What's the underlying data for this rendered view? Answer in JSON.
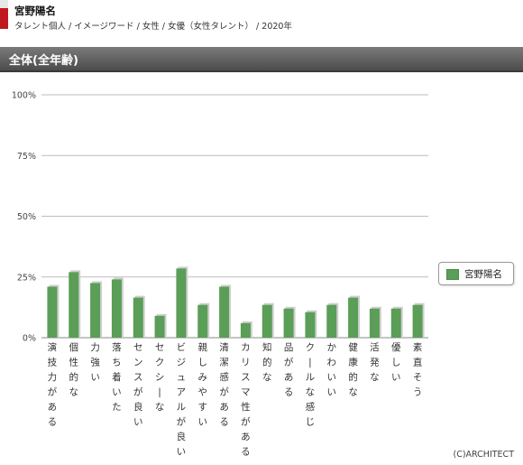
{
  "header": {
    "title": "宮野陽名",
    "subtitle": "タレント個人 / イメージワード / 女性 / 女優（女性タレント） / 2020年"
  },
  "section": {
    "title": "全体(全年齢)"
  },
  "copyright": "(C)ARCHITECT",
  "colors": {
    "bar": "#5a9e57",
    "bar_shadow": "#cfcfcf",
    "grid": "#bdbdbd",
    "section_bar": "#5e5e5e",
    "header_mark": "#c0181f"
  },
  "chart_data": {
    "type": "bar",
    "categories": [
      "演技力がある",
      "個性的な",
      "力強い",
      "落ち着いた",
      "センスが良い",
      "セクシーな",
      "ビジュアルが良い",
      "親しみやすい",
      "清潔感がある",
      "カリスマ性がある",
      "知的な",
      "品がある",
      "クールな感じ",
      "かわいい",
      "健康的な",
      "活発な",
      "優しい",
      "素直そう"
    ],
    "series": [
      {
        "name": "宮野陽名",
        "values": [
          21,
          27,
          22.5,
          24,
          16.5,
          9,
          28.5,
          13.5,
          21,
          6,
          13.5,
          12,
          10.5,
          13.5,
          16.5,
          12,
          12,
          13.5
        ]
      }
    ],
    "yticks": [
      "0%",
      "25%",
      "50%",
      "75%",
      "100%"
    ],
    "ylim": [
      0,
      100
    ],
    "legend": "right",
    "grid": true
  }
}
